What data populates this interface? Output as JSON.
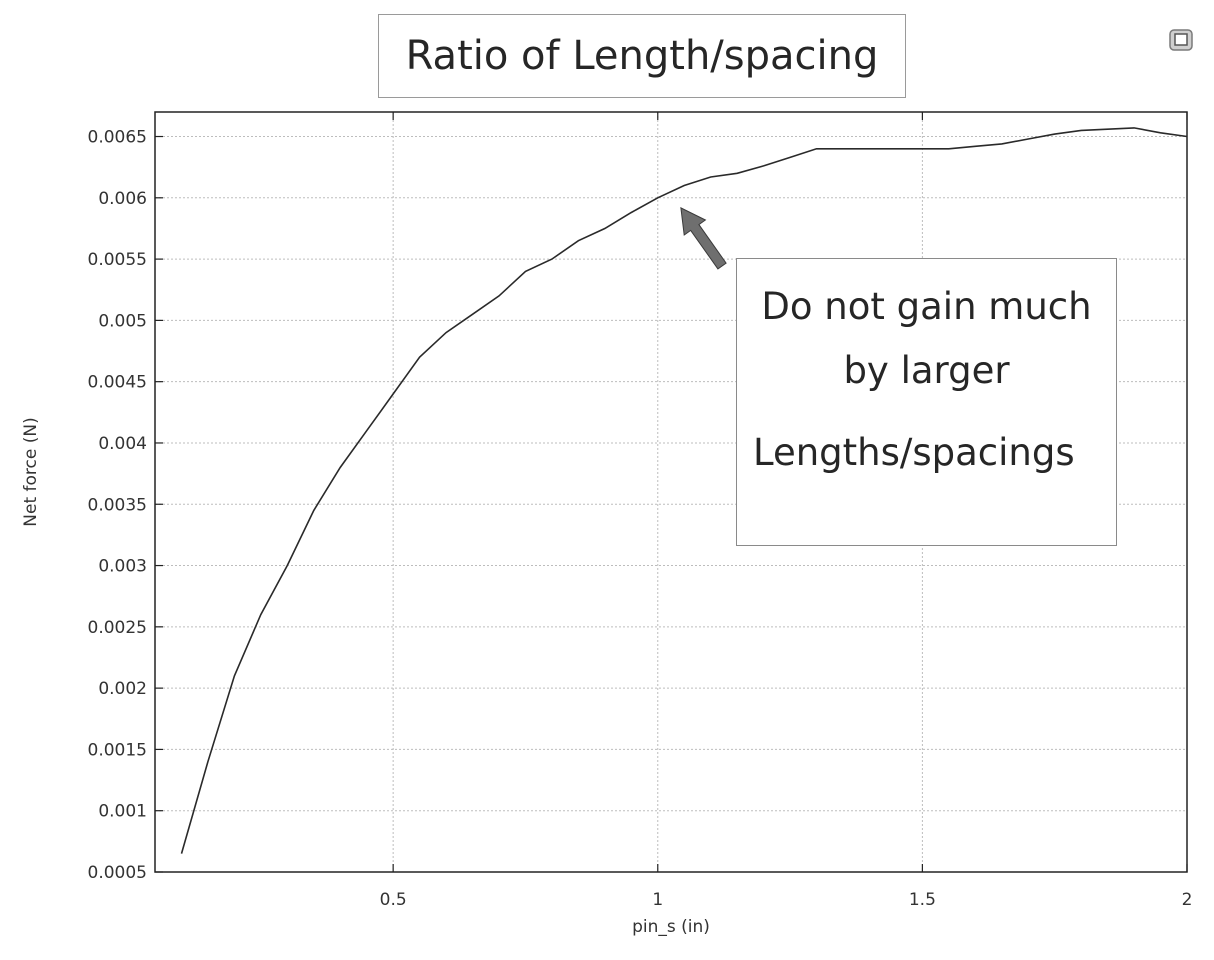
{
  "icons": {
    "corner": "window-restore-icon"
  },
  "colors": {
    "line": "#2a2a2a",
    "grid": "#bdbdbd",
    "arrow": "#6f6f6f"
  },
  "chart_data": {
    "type": "line",
    "title": "Ratio of Length/spacing",
    "xlabel": "pin_s (in)",
    "ylabel": "Net force (N)",
    "xlim": [
      0.05,
      2.0
    ],
    "ylim": [
      0.0005,
      0.0067
    ],
    "grid": true,
    "xticks": [
      {
        "value": 0.5,
        "label": "0.5"
      },
      {
        "value": 1.0,
        "label": "1"
      },
      {
        "value": 1.5,
        "label": "1.5"
      },
      {
        "value": 2.0,
        "label": "2"
      }
    ],
    "yticks": [
      {
        "value": 0.0005,
        "label": "0.0005"
      },
      {
        "value": 0.001,
        "label": "0.001"
      },
      {
        "value": 0.0015,
        "label": "0.0015"
      },
      {
        "value": 0.002,
        "label": "0.002"
      },
      {
        "value": 0.0025,
        "label": "0.0025"
      },
      {
        "value": 0.003,
        "label": "0.003"
      },
      {
        "value": 0.0035,
        "label": "0.0035"
      },
      {
        "value": 0.004,
        "label": "0.004"
      },
      {
        "value": 0.0045,
        "label": "0.0045"
      },
      {
        "value": 0.005,
        "label": "0.005"
      },
      {
        "value": 0.0055,
        "label": "0.0055"
      },
      {
        "value": 0.006,
        "label": "0.006"
      },
      {
        "value": 0.0065,
        "label": "0.0065"
      }
    ],
    "series": [
      {
        "x": [
          0.1,
          0.15,
          0.2,
          0.25,
          0.3,
          0.35,
          0.4,
          0.45,
          0.5,
          0.55,
          0.6,
          0.65,
          0.7,
          0.75,
          0.8,
          0.85,
          0.9,
          0.95,
          1.0,
          1.05,
          1.1,
          1.15,
          1.2,
          1.25,
          1.3,
          1.35,
          1.4,
          1.45,
          1.5,
          1.55,
          1.6,
          1.65,
          1.7,
          1.75,
          1.8,
          1.85,
          1.9,
          1.95,
          2.0
        ],
        "y": [
          0.00065,
          0.0014,
          0.0021,
          0.0026,
          0.003,
          0.00345,
          0.0038,
          0.0041,
          0.0044,
          0.0047,
          0.0049,
          0.00505,
          0.0052,
          0.0054,
          0.0055,
          0.00565,
          0.00575,
          0.00588,
          0.006,
          0.0061,
          0.00617,
          0.0062,
          0.00626,
          0.00633,
          0.0064,
          0.0064,
          0.0064,
          0.0064,
          0.0064,
          0.0064,
          0.00642,
          0.00644,
          0.00648,
          0.00652,
          0.00655,
          0.00656,
          0.00657,
          0.00653,
          0.0065
        ]
      }
    ],
    "annotation": {
      "lines": [
        "Do not gain much",
        "by larger",
        "Lengths/spacings"
      ],
      "arrow_target": {
        "x": 1.04,
        "y": 0.00595
      }
    }
  }
}
